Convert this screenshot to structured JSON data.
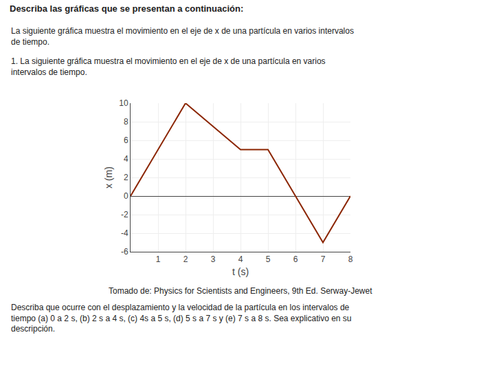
{
  "chart_data": {
    "type": "line",
    "title": "Describa las gráficas que se presentan a continuación:",
    "annotations": [
      "La siguiente gráfica muestra el movimiento en el eje de x de una partícula en varios intervalos\nde tiempo.",
      "1. La siguiente gráfica muestra el movimiento en el eje de x de una partícula en varios\nintervalos de tiempo.",
      "Tomado de: Physics for Scientists and Engineers, 9th Ed. Serway-Jewet",
      "Describa que ocurre con el desplazamiento y la velocidad de la partícula en los intervalos de\ntiempo (a) 0 a 2 s, (b) 2 s a 4 s, (c) 4s a 5 s, (d) 5 s a 7 s y (e) 7 s a 8 s. Sea explicativo en su\ndescripción."
    ],
    "x": [
      0,
      2,
      4,
      5,
      6,
      7,
      8
    ],
    "values": [
      0,
      10,
      5,
      5,
      0,
      -5,
      0
    ],
    "color": "#8B2500",
    "xlabel": "t (s)",
    "ylabel": "x (m)",
    "xlim": [
      0,
      8
    ],
    "ylim": [
      -6,
      10
    ],
    "xticks": [
      1,
      2,
      3,
      4,
      5,
      6,
      7,
      8
    ],
    "yticks": [
      -6,
      -4,
      -2,
      0,
      2,
      4,
      6,
      8,
      10
    ],
    "grid": true
  }
}
